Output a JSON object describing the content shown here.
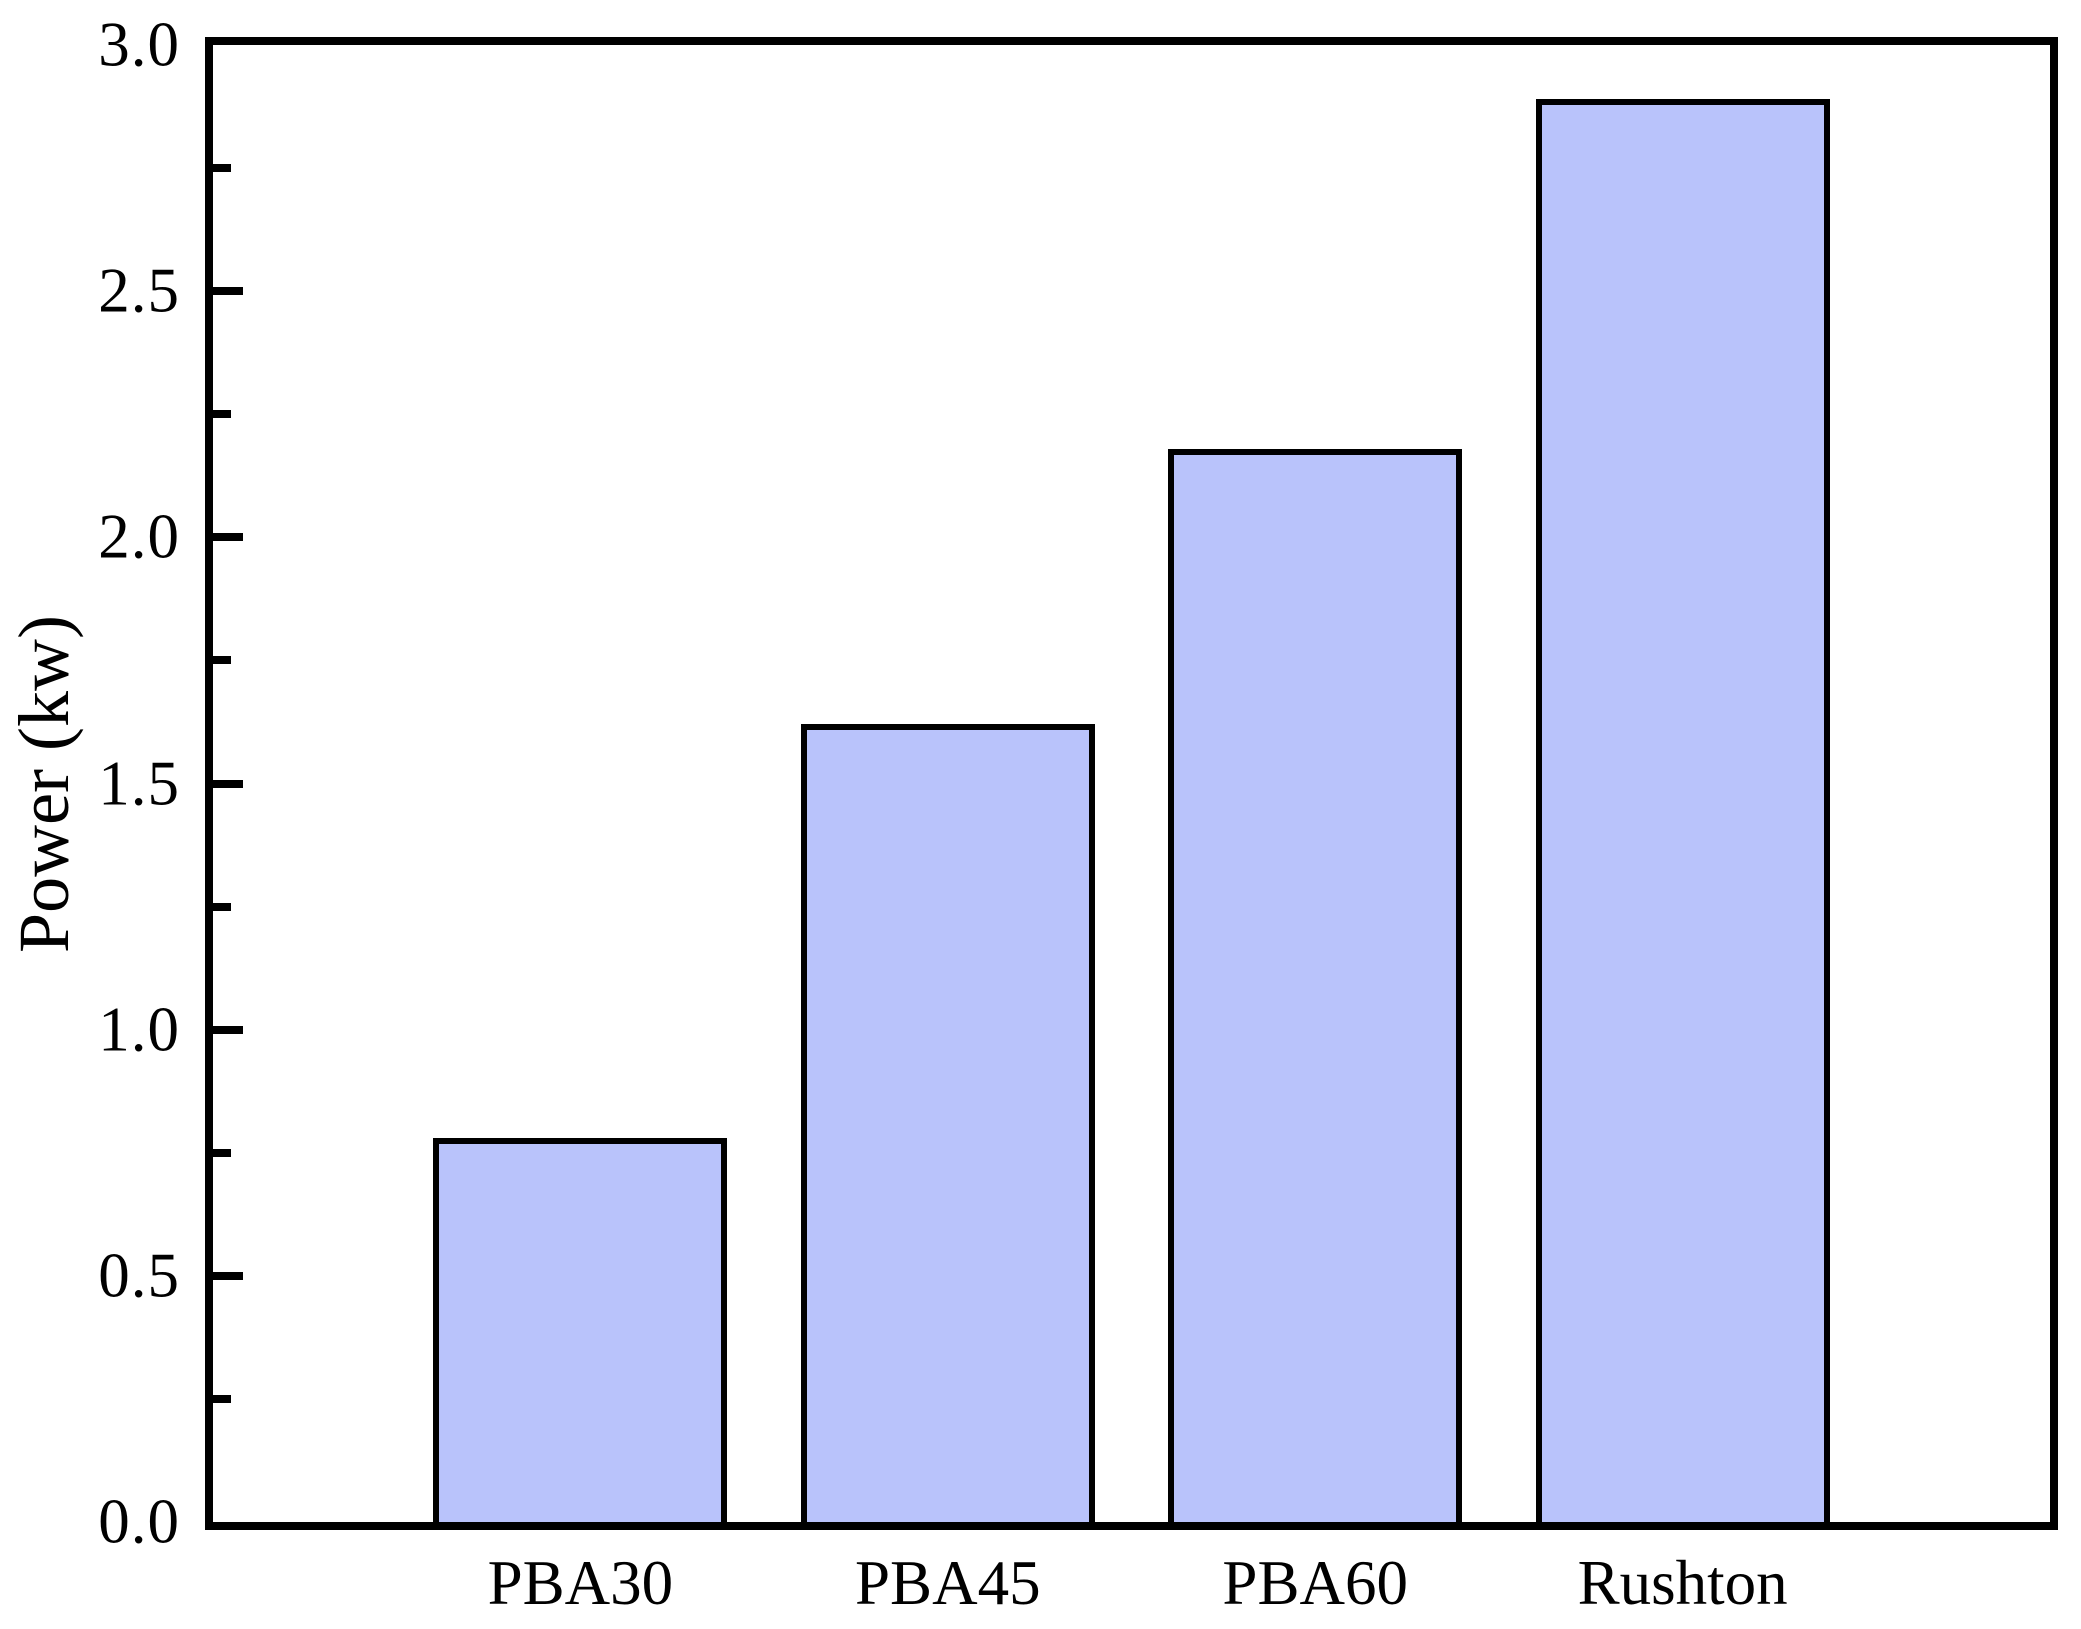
{
  "chart_data": {
    "type": "bar",
    "title": "",
    "categories": [
      "PBA30",
      "PBA45",
      "PBA60",
      "Rushton"
    ],
    "values": [
      0.78,
      1.62,
      2.18,
      2.89
    ],
    "xlabel": "",
    "ylabel": "Power（kw）",
    "ylim": [
      0.0,
      3.0
    ],
    "ytick_step": 0.5,
    "minor_tick_step": 0.25,
    "ytick_labels": [
      "0.0",
      "0.5",
      "1.0",
      "1.5",
      "2.0",
      "2.5",
      "3.0"
    ],
    "grid": false,
    "legend": false,
    "bar_fill": "#b9c3fb",
    "bar_edge": "#000000",
    "axis_color": "#000000",
    "bar_width_fraction": 0.16
  }
}
